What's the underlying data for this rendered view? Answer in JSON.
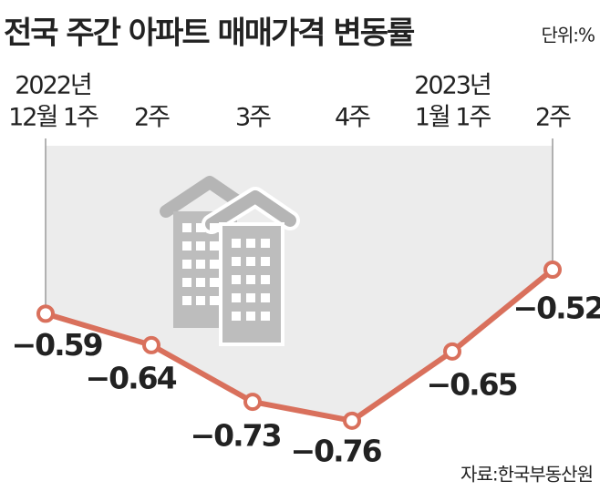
{
  "chart_data": {
    "type": "line",
    "title": "전국 주간 아파트 매매가격 변동률",
    "unit": "단위:%",
    "source": "자료:한국부동산원",
    "categories": [
      [
        "2022년",
        "12월 1주"
      ],
      [
        "2주"
      ],
      [
        "3주"
      ],
      [
        "4주"
      ],
      [
        "2023년",
        "1월 1주"
      ],
      [
        "2주"
      ]
    ],
    "values": [
      -0.59,
      -0.64,
      -0.73,
      -0.76,
      -0.65,
      -0.52
    ],
    "value_labels": [
      "−0.59",
      "−0.64",
      "−0.73",
      "−0.76",
      "−0.65",
      "−0.52"
    ],
    "color": "#d9705c"
  }
}
